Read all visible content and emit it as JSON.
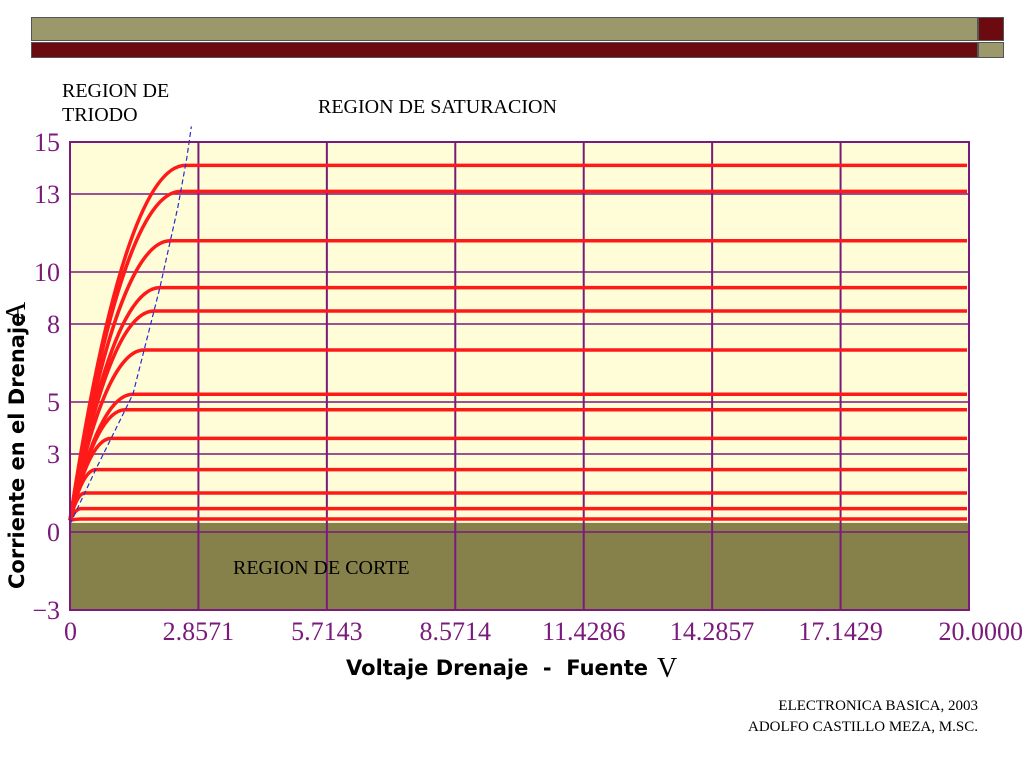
{
  "slide": {
    "colors": {
      "olive_bar": "#9b986b",
      "maroon_bar": "#6b0b10"
    },
    "annotations": {
      "triode_line1": "REGION DE",
      "triode_line2": "TRIODO",
      "saturation": "REGION DE SATURACION",
      "cutoff": "REGION DE CORTE"
    },
    "footer": {
      "line1": "ELECTRONICA BASICA, 2003",
      "line2": "ADOLFO CASTILLO MEZA, M.SC."
    }
  },
  "chart_data": {
    "type": "line",
    "xlabel": "Voltaje Drenaje  -  Fuente",
    "xunit": "V",
    "ylabel": "Corriente en el Drenaje",
    "yunit": "A",
    "xlim": [
      0,
      20
    ],
    "ylim": [
      -3,
      15
    ],
    "x_ticks": [
      0,
      2.8571,
      5.7143,
      8.5714,
      11.4286,
      14.2857,
      17.1429,
      20.0
    ],
    "x_tick_labels": [
      "0",
      "2.8571",
      "5.7143",
      "8.5714",
      "11.4286",
      "14.2857",
      "17.1429",
      "20.0000"
    ],
    "y_ticks": [
      -3,
      0,
      3,
      5,
      8,
      10,
      13,
      15
    ],
    "y_tick_labels": [
      "−3",
      "0",
      "3",
      "5",
      "8",
      "10",
      "13",
      "15"
    ],
    "grid": true,
    "colors": {
      "plot_bg": "#fffdd8",
      "grid": "#7a1a7a",
      "curve": "#ff1a1a",
      "cutoff_region": "#86814a",
      "boundary": "#2a2acc",
      "tick_text": "#7a1a7a"
    },
    "cutoff_region": {
      "y_from": -3,
      "y_to": 0.35
    },
    "saturation_levels": [
      0.5,
      0.9,
      1.5,
      2.4,
      3.6,
      4.7,
      5.3,
      7.0,
      8.5,
      9.4,
      11.2,
      13.1,
      14.1
    ],
    "boundary_curve": {
      "x": [
        0,
        0.6,
        1.4,
        2.0,
        2.4,
        2.6,
        2.7
      ],
      "y": [
        0.3,
        2.5,
        5.3,
        9.4,
        12.5,
        14.4,
        15.6
      ]
    },
    "curve_start": {
      "x": 0,
      "y": 0.45
    }
  }
}
